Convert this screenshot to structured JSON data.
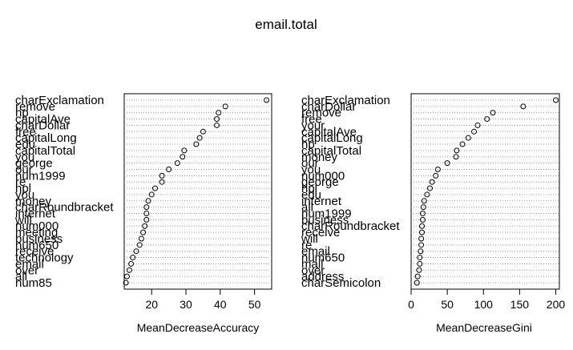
{
  "title": "email.total",
  "chart_data": [
    {
      "type": "scatter",
      "xlabel": "MeanDecreaseAccuracy",
      "xlim": [
        12,
        55
      ],
      "xticks": [
        20,
        30,
        40,
        50
      ],
      "grid": "dotted horizontal",
      "labels": [
        "charExclamation",
        "remove",
        "hp",
        "capitalAve",
        "charDollar",
        "free",
        "capitalLong",
        "edu",
        "capitalTotal",
        "you",
        "george",
        "our",
        "num1999",
        "re",
        "hpl",
        "you",
        "money",
        "charRoundbracket",
        "internet",
        "will",
        "num000",
        "meeting",
        "business",
        "num650",
        "receive",
        "technology",
        "email",
        "over",
        "all",
        "num85"
      ],
      "values": [
        53.5,
        41.5,
        39.5,
        39,
        39,
        35,
        34,
        33,
        29.5,
        29,
        27.5,
        25,
        23,
        23,
        21,
        20,
        19,
        18.5,
        18.5,
        18.5,
        18,
        17.5,
        17,
        16.5,
        15.5,
        14.5,
        14,
        13.5,
        12.8,
        12.5
      ]
    },
    {
      "type": "scatter",
      "xlabel": "MeanDecreaseGini",
      "xlim": [
        0,
        205
      ],
      "xticks": [
        0,
        50,
        100,
        150,
        200
      ],
      "grid": "dotted horizontal",
      "labels": [
        "charExclamation",
        "charDollar",
        "remove",
        "free",
        "your",
        "capitalAve",
        "capitalLong",
        "hp",
        "capitalTotal",
        "money",
        "our",
        "you",
        "num000",
        "george",
        "hpl",
        "edu",
        "internet",
        "all",
        "num1999",
        "business",
        "charRoundbracket",
        "receive",
        "will",
        "re",
        "email",
        "num650",
        "mail",
        "over",
        "address",
        "charSemicolon"
      ],
      "values": [
        200,
        155,
        113,
        105,
        92,
        87,
        79,
        71,
        63,
        62,
        50,
        37,
        34,
        29,
        26,
        22,
        18,
        17,
        16,
        16,
        15,
        15,
        14,
        14,
        13,
        12,
        12,
        11,
        9,
        8
      ]
    }
  ]
}
